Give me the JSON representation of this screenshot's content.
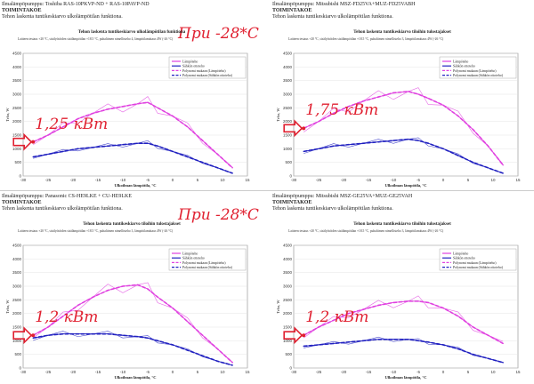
{
  "temp_labels": [
    "При -28*С",
    "При -28*С"
  ],
  "chart_data": [
    {
      "type": "line",
      "model": "Ilmalämpöpumppu: Toshiba RAS-10PKVP-ND + RAS-10PAVP-ND",
      "section": "TOIMINTAKOE",
      "desc": "Tehon laskenta tuntikeskiarvo ulkolämpötilan funktiona.",
      "title": "Tehon laskenta tuntikeskiarvo ulkolämpötilan funktiona",
      "note": "Laitteen testaus +20 °C, sisälyötöiden sisälämpötilan +18.5 °C, puhaltimen nimellisteho 4, lämpötilamittaus 4W (-26 °C)",
      "xlabel": "Ulkoilman lämpötila, °C",
      "ylabel": "Teho, W",
      "xlim": [
        -30,
        15
      ],
      "ylim": [
        0,
        4500
      ],
      "xticks": [
        -30,
        -25,
        -20,
        -15,
        -10,
        -5,
        0,
        5,
        10,
        15
      ],
      "yticks": [
        0,
        500,
        1000,
        1500,
        2000,
        2500,
        3000,
        3500,
        4000,
        4500
      ],
      "legend": [
        "Lämpöteho",
        "Sähkön ottoteho",
        "Polynomi mukaan (Lämpöteho)",
        "Polynomi mukaan (Sähkön ottoteho)"
      ],
      "legend_position": "top-right",
      "annotation": "1,25 кВт",
      "annotation_x": -28,
      "annotation_y": 1250,
      "series": [
        {
          "name": "Lämpöteho",
          "color": "#e040e0",
          "x": [
            -28,
            -25,
            -22,
            -19,
            -16,
            -13,
            -10,
            -7,
            -5,
            -3,
            0,
            3,
            6,
            9,
            12
          ],
          "values": [
            1250,
            1500,
            1800,
            2100,
            2300,
            2450,
            2550,
            2650,
            2700,
            2500,
            2200,
            1800,
            1300,
            800,
            300
          ]
        },
        {
          "name": "Sähkön ottoteho",
          "color": "#2020c0",
          "x": [
            -28,
            -25,
            -22,
            -19,
            -16,
            -13,
            -10,
            -7,
            -5,
            -3,
            0,
            3,
            6,
            9,
            12
          ],
          "values": [
            700,
            800,
            900,
            1000,
            1050,
            1100,
            1150,
            1200,
            1200,
            1100,
            900,
            700,
            500,
            300,
            100
          ]
        }
      ]
    },
    {
      "type": "line",
      "model": "Ilmalämpöpumppu: Mitsubishi MSZ-FD25VA+MUZ-FD25VABH",
      "section": "TOIMINTAKOE",
      "desc": "Tehon laskenta tuntikeskiarvo ulkolämpötilan funktiona.",
      "title": "Tehon laskenta tuntikeskiarvo tiloihin tulostajakset",
      "note": "Laitteen testaus +20 °C, sisälyötöiden sisälämpötilan +18.5 °C, puhaltimen nimellisteho 3, lämpötilamittaus 4W (-26 °C)",
      "xlabel": "Ulkoilman lämpötila, °C",
      "ylabel": "Teho, W",
      "xlim": [
        -30,
        15
      ],
      "ylim": [
        0,
        4500
      ],
      "xticks": [
        -30,
        -25,
        -20,
        -15,
        -10,
        -5,
        0,
        5,
        10,
        15
      ],
      "yticks": [
        0,
        500,
        1000,
        1500,
        2000,
        2500,
        3000,
        3500,
        4000,
        4500
      ],
      "legend": [
        "Lämpöteho",
        "Sähkön ottoteho",
        "Polynomi mukaan (Lämpöteho)",
        "Polynomi mukaan (Sähkön ottoteho)"
      ],
      "legend_position": "top-right",
      "annotation": "1,75 кВт",
      "annotation_x": -28,
      "annotation_y": 1750,
      "series": [
        {
          "name": "Lämpöteho",
          "color": "#e040e0",
          "x": [
            -28,
            -25,
            -22,
            -19,
            -16,
            -13,
            -10,
            -7,
            -5,
            -3,
            0,
            3,
            6,
            9,
            12
          ],
          "values": [
            1750,
            2000,
            2300,
            2550,
            2750,
            2900,
            3050,
            3100,
            3000,
            2850,
            2600,
            2200,
            1700,
            1100,
            400
          ]
        },
        {
          "name": "Sähkön ottoteho",
          "color": "#2020c0",
          "x": [
            -28,
            -25,
            -22,
            -19,
            -16,
            -13,
            -10,
            -7,
            -5,
            -3,
            0,
            3,
            6,
            9,
            12
          ],
          "values": [
            900,
            1000,
            1100,
            1150,
            1200,
            1250,
            1300,
            1350,
            1300,
            1200,
            1000,
            750,
            500,
            300,
            100
          ]
        }
      ]
    },
    {
      "type": "line",
      "model": "Ilmalämpöpumppu: Panasonic CS-HE9LKE + CU-HE9LKE",
      "section": "TOIMINTAKOE",
      "desc": "Tehon laskenta tuntikeskiarvo ulkolämpötilan funktiona.",
      "title": "Tehon laskenta tuntikeskiarvo tiloihin tulostajakset",
      "note": "Laitteen testaus +20 °C, sisälyötöiden sisälämpötilan +18.5 °C, puhaltimen nimellisteho 3, lämpötilamittaus 4W (-26 °C)",
      "xlabel": "Ulkoilman lämpötila, °C",
      "ylabel": "Teho, W",
      "xlim": [
        -30,
        15
      ],
      "ylim": [
        0,
        4500
      ],
      "xticks": [
        -30,
        -25,
        -20,
        -15,
        -10,
        -5,
        0,
        5,
        10,
        15
      ],
      "yticks": [
        0,
        500,
        1000,
        1500,
        2000,
        2500,
        3000,
        3500,
        4000,
        4500
      ],
      "legend": [
        "Lämpöteho",
        "Sähkön ottoteho",
        "Polynomi mukaan (Lämpöteho)",
        "Polynomi mukaan (Sähkön ottoteho)"
      ],
      "legend_position": "top-right",
      "annotation": "1,2 кВт",
      "annotation_x": -28,
      "annotation_y": 1200,
      "series": [
        {
          "name": "Lämpöteho",
          "color": "#e040e0",
          "x": [
            -28,
            -25,
            -22,
            -19,
            -16,
            -13,
            -10,
            -7,
            -5,
            -3,
            0,
            3,
            6,
            9,
            12
          ],
          "values": [
            1200,
            1500,
            1900,
            2300,
            2600,
            2850,
            3000,
            3050,
            2900,
            2600,
            2200,
            1700,
            1200,
            700,
            200
          ]
        },
        {
          "name": "Sähkön ottoteho",
          "color": "#2020c0",
          "x": [
            -28,
            -25,
            -22,
            -19,
            -16,
            -13,
            -10,
            -7,
            -5,
            -3,
            0,
            3,
            6,
            9,
            12
          ],
          "values": [
            1100,
            1200,
            1250,
            1250,
            1250,
            1250,
            1200,
            1150,
            1100,
            1000,
            850,
            650,
            450,
            250,
            100
          ]
        }
      ]
    },
    {
      "type": "line",
      "model": "Ilmalämpöpumppu: Mitsubishi MSZ-GE25VA+MUZ-GE25VAH",
      "section": "TOIMINTAKOE",
      "desc": "Tehon laskenta tuntikeskiarvo ulkolämpötilan funktiona.",
      "title": "Tehon laskenta tuntikeskiarvo tiloihin tulostajakset",
      "note": "Laitteen testaus +20 °C, sisälyötöiden sisälämpötilan +18.5 °C, puhaltimen nimellisteho 3, lämpötilamittaus 4W (-26 °C)",
      "xlabel": "Ulkoilman lämpötila, °C",
      "ylabel": "Teho, W",
      "xlim": [
        -30,
        15
      ],
      "ylim": [
        0,
        4500
      ],
      "xticks": [
        -30,
        -25,
        -20,
        -15,
        -10,
        -5,
        0,
        5,
        10,
        15
      ],
      "yticks": [
        0,
        500,
        1000,
        1500,
        2000,
        2500,
        3000,
        3500,
        4000,
        4500
      ],
      "legend": [
        "Lämpöteho",
        "Sähkön ottoteho",
        "Polynomi mukaan (Lämpöteho)",
        "Polynomi mukaan (Sähkön ottoteho)"
      ],
      "legend_position": "top-right",
      "annotation": "1,2 кВт",
      "annotation_x": -28,
      "annotation_y": 1200,
      "series": [
        {
          "name": "Lämpöteho",
          "color": "#e040e0",
          "x": [
            -28,
            -25,
            -22,
            -19,
            -16,
            -13,
            -10,
            -7,
            -5,
            -3,
            0,
            3,
            6,
            9,
            12
          ],
          "values": [
            1200,
            1500,
            1750,
            2000,
            2150,
            2300,
            2400,
            2450,
            2450,
            2400,
            2200,
            1900,
            1500,
            1200,
            900
          ]
        },
        {
          "name": "Sähkön ottoteho",
          "color": "#2020c0",
          "x": [
            -28,
            -25,
            -22,
            -19,
            -16,
            -13,
            -10,
            -7,
            -5,
            -3,
            0,
            3,
            6,
            9,
            12
          ],
          "values": [
            800,
            850,
            900,
            950,
            1000,
            1050,
            1050,
            1050,
            1000,
            950,
            850,
            700,
            500,
            350,
            200
          ]
        }
      ]
    }
  ]
}
